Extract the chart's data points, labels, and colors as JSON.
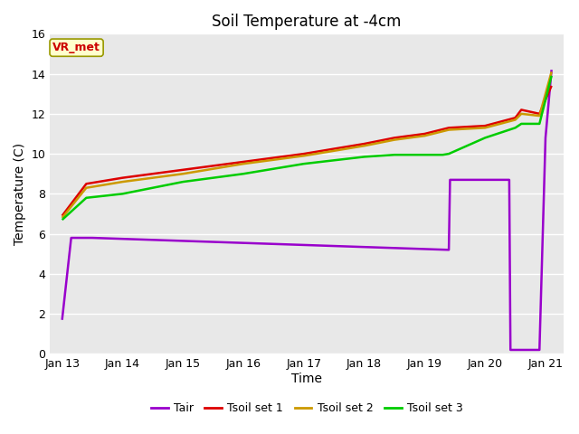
{
  "title": "Soil Temperature at -4cm",
  "xlabel": "Time",
  "ylabel": "Temperature (C)",
  "ylim": [
    0,
    16
  ],
  "plot_bg_color": "#e8e8e8",
  "fig_bg_color": "#ffffff",
  "legend_labels": [
    "Tair",
    "Tsoil set 1",
    "Tsoil set 2",
    "Tsoil set 3"
  ],
  "legend_colors": [
    "#9900cc",
    "#dd0000",
    "#cc9900",
    "#00cc00"
  ],
  "annotation_text": "VR_met",
  "annotation_color": "#cc0000",
  "annotation_bg": "#ffffcc",
  "annotation_border": "#999900",
  "x_ticks": [
    "Jan 13",
    "Jan 14",
    "Jan 15",
    "Jan 16",
    "Jan 17",
    "Jan 18",
    "Jan 19",
    "Jan 20",
    "Jan 21"
  ],
  "Tair_x": [
    0.0,
    0.15,
    0.5,
    6.4,
    6.42,
    7.4,
    7.42,
    7.9,
    8.0,
    8.1
  ],
  "Tair_y": [
    1.7,
    5.8,
    5.8,
    5.2,
    8.7,
    8.7,
    0.2,
    0.2,
    10.8,
    14.2
  ],
  "Tsoil1_x": [
    0.0,
    0.4,
    1.0,
    2.0,
    3.0,
    4.0,
    5.0,
    5.5,
    6.0,
    6.4,
    7.0,
    7.5,
    7.6,
    7.9,
    8.1
  ],
  "Tsoil1_y": [
    6.9,
    8.5,
    8.8,
    9.2,
    9.6,
    10.0,
    10.5,
    10.8,
    11.0,
    11.3,
    11.4,
    11.8,
    12.2,
    12.0,
    13.4
  ],
  "Tsoil2_x": [
    0.0,
    0.4,
    1.0,
    2.0,
    3.0,
    4.0,
    5.0,
    5.5,
    6.0,
    6.4,
    7.0,
    7.5,
    7.6,
    7.9,
    8.1
  ],
  "Tsoil2_y": [
    6.8,
    8.3,
    8.6,
    9.0,
    9.5,
    9.9,
    10.4,
    10.7,
    10.9,
    11.2,
    11.3,
    11.7,
    12.0,
    11.9,
    14.1
  ],
  "Tsoil3_x": [
    0.0,
    0.4,
    1.0,
    2.0,
    3.0,
    4.0,
    5.0,
    5.5,
    6.0,
    6.3,
    6.4,
    7.0,
    7.5,
    7.6,
    7.9,
    8.1
  ],
  "Tsoil3_y": [
    6.7,
    7.8,
    8.0,
    8.6,
    9.0,
    9.5,
    9.85,
    9.95,
    9.95,
    9.95,
    10.0,
    10.8,
    11.3,
    11.5,
    11.5,
    13.9
  ],
  "grid_color": "#ffffff",
  "grid_linewidth": 1.0,
  "line_linewidth": 1.8
}
